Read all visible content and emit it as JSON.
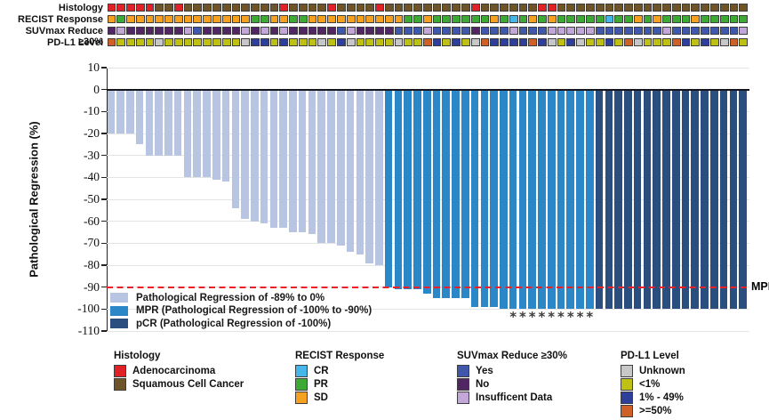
{
  "tracks": {
    "labels": [
      "Histology",
      "RECIST Response",
      "SUVmax Reduce ≥30%",
      "PD-L1 Level"
    ],
    "color_map": {
      "A": "#e02127",
      "S": "#6e5426",
      "SD": "#f5a01e",
      "PR": "#3caa35",
      "CR": "#44b7e8",
      "Y": "#4058ab",
      "N": "#522564",
      "I": "#c2a7d8",
      "U": "#c7c7c7",
      "L": "#bec114",
      "M": "#2e3e9b",
      "H": "#cd6127"
    },
    "rows": {
      "histology": [
        "A",
        "A",
        "A",
        "A",
        "A",
        "S",
        "S",
        "A",
        "S",
        "S",
        "S",
        "S",
        "S",
        "S",
        "S",
        "S",
        "S",
        "S",
        "A",
        "S",
        "S",
        "S",
        "S",
        "A",
        "S",
        "S",
        "S",
        "S",
        "A",
        "S",
        "S",
        "S",
        "S",
        "S",
        "S",
        "S",
        "S",
        "S",
        "A",
        "S",
        "S",
        "S",
        "S",
        "S",
        "S",
        "A",
        "A",
        "S",
        "S",
        "S",
        "S",
        "S",
        "S",
        "S",
        "S",
        "S",
        "S",
        "S",
        "S",
        "S",
        "S",
        "S",
        "S",
        "S",
        "S",
        "S",
        "S"
      ],
      "recist": [
        "SD",
        "PR",
        "SD",
        "SD",
        "SD",
        "SD",
        "SD",
        "SD",
        "SD",
        "SD",
        "SD",
        "SD",
        "SD",
        "SD",
        "SD",
        "PR",
        "PR",
        "SD",
        "SD",
        "PR",
        "PR",
        "SD",
        "SD",
        "SD",
        "SD",
        "SD",
        "SD",
        "SD",
        "SD",
        "SD",
        "SD",
        "PR",
        "PR",
        "SD",
        "PR",
        "PR",
        "PR",
        "PR",
        "PR",
        "PR",
        "SD",
        "PR",
        "CR",
        "PR",
        "SD",
        "PR",
        "SD",
        "PR",
        "PR",
        "PR",
        "PR",
        "PR",
        "CR",
        "PR",
        "PR",
        "SD",
        "PR",
        "SD",
        "PR",
        "PR",
        "PR",
        "SD",
        "PR",
        "PR",
        "PR",
        "PR",
        "PR"
      ],
      "suvmax": [
        "N",
        "I",
        "N",
        "N",
        "N",
        "N",
        "N",
        "N",
        "I",
        "Y",
        "N",
        "N",
        "N",
        "N",
        "I",
        "N",
        "I",
        "N",
        "I",
        "N",
        "N",
        "N",
        "N",
        "N",
        "Y",
        "I",
        "N",
        "N",
        "N",
        "N",
        "Y",
        "Y",
        "Y",
        "I",
        "Y",
        "Y",
        "Y",
        "Y",
        "N",
        "Y",
        "Y",
        "Y",
        "I",
        "Y",
        "Y",
        "Y",
        "I",
        "I",
        "I",
        "I",
        "I",
        "Y",
        "Y",
        "Y",
        "Y",
        "Y",
        "Y",
        "Y",
        "I",
        "Y",
        "Y",
        "Y",
        "Y",
        "Y",
        "Y",
        "Y",
        "I"
      ],
      "pdl1": [
        "H",
        "L",
        "L",
        "L",
        "L",
        "U",
        "L",
        "L",
        "L",
        "L",
        "L",
        "L",
        "L",
        "L",
        "U",
        "M",
        "M",
        "L",
        "M",
        "L",
        "L",
        "L",
        "U",
        "L",
        "M",
        "U",
        "L",
        "L",
        "L",
        "L",
        "U",
        "L",
        "L",
        "H",
        "M",
        "L",
        "M",
        "L",
        "U",
        "H",
        "M",
        "M",
        "M",
        "M",
        "H",
        "M",
        "U",
        "L",
        "M",
        "U",
        "L",
        "L",
        "M",
        "L",
        "H",
        "U",
        "L",
        "L",
        "L",
        "H",
        "M",
        "L",
        "M",
        "L",
        "U",
        "H",
        "L"
      ]
    }
  },
  "chart_data": {
    "type": "bar",
    "subtype": "waterfall",
    "title": "",
    "xlabel": "",
    "ylabel": "Pathological Regression (%)",
    "n_patients": 67,
    "ylim": [
      -110,
      10
    ],
    "yticks": [
      10,
      0,
      -10,
      -20,
      -30,
      -40,
      -50,
      -60,
      -70,
      -80,
      -90,
      -100,
      -110
    ],
    "values": [
      -20,
      -20,
      -20,
      -25,
      -30,
      -30,
      -30,
      -30,
      -40,
      -40,
      -40,
      -41,
      -42,
      -54,
      -59,
      -60,
      -61,
      -63,
      -63,
      -65,
      -65,
      -66,
      -70,
      -70,
      -71,
      -74,
      -75,
      -79,
      -80,
      -90,
      -91,
      -91,
      -91,
      -93,
      -95,
      -95,
      -95,
      -95,
      -99,
      -99,
      -99,
      -100,
      -100,
      -100,
      -100,
      -100,
      -100,
      -100,
      -100,
      -100,
      -100,
      -100,
      -100,
      -100,
      -100,
      -100,
      -100,
      -100,
      -100,
      -100,
      -100,
      -100,
      -100,
      -100,
      -100,
      -100,
      -100
    ],
    "groups": [
      {
        "name": "regression",
        "bars": [
          1,
          29
        ]
      },
      {
        "name": "mpr",
        "bars": [
          30,
          51
        ]
      },
      {
        "name": "pcr",
        "bars": [
          52,
          67
        ]
      }
    ],
    "colors": {
      "regression": "#b8c5e2",
      "mpr": "#2c87c9",
      "pcr": "#2a4e7e"
    },
    "mpr_line": {
      "y": -90,
      "label": "MPR",
      "color": "#ee2027",
      "style": "dashed"
    },
    "asterisk_bars": [
      43,
      44,
      45,
      46,
      47,
      48,
      49,
      50,
      51
    ],
    "grid": true,
    "legend_position": "inside-bottom-left"
  },
  "plot_legend": {
    "items": [
      {
        "label": "Pathological Regression of -89% to 0%",
        "color": "#b8c5e2"
      },
      {
        "label": "MPR (Pathological Regression of -100% to -90%)",
        "color": "#2c87c9"
      },
      {
        "label": "pCR (Pathological Regression of -100%)",
        "color": "#2a4e7e"
      }
    ]
  },
  "bottom_legends": [
    {
      "title": "Histology",
      "items": [
        {
          "label": "Adenocarcinoma",
          "color": "#e02127"
        },
        {
          "label": "Squamous Cell Cancer",
          "color": "#6e5426"
        }
      ]
    },
    {
      "title": "RECIST Response",
      "items": [
        {
          "label": "CR",
          "color": "#44b7e8"
        },
        {
          "label": "PR",
          "color": "#3caa35"
        },
        {
          "label": "SD",
          "color": "#f5a01e"
        }
      ]
    },
    {
      "title": "SUVmax Reduce ≥30%",
      "items": [
        {
          "label": "Yes",
          "color": "#4058ab"
        },
        {
          "label": "No",
          "color": "#522564"
        },
        {
          "label": "Insufficent Data",
          "color": "#c2a7d8"
        }
      ]
    },
    {
      "title": "PD-L1 Level",
      "items": [
        {
          "label": "Unknown",
          "color": "#c7c7c7"
        },
        {
          "label": "<1%",
          "color": "#bec114"
        },
        {
          "label": "1% - 49%",
          "color": "#2e3e9b"
        },
        {
          "label": ">=50%",
          "color": "#cd6127"
        }
      ]
    }
  ]
}
